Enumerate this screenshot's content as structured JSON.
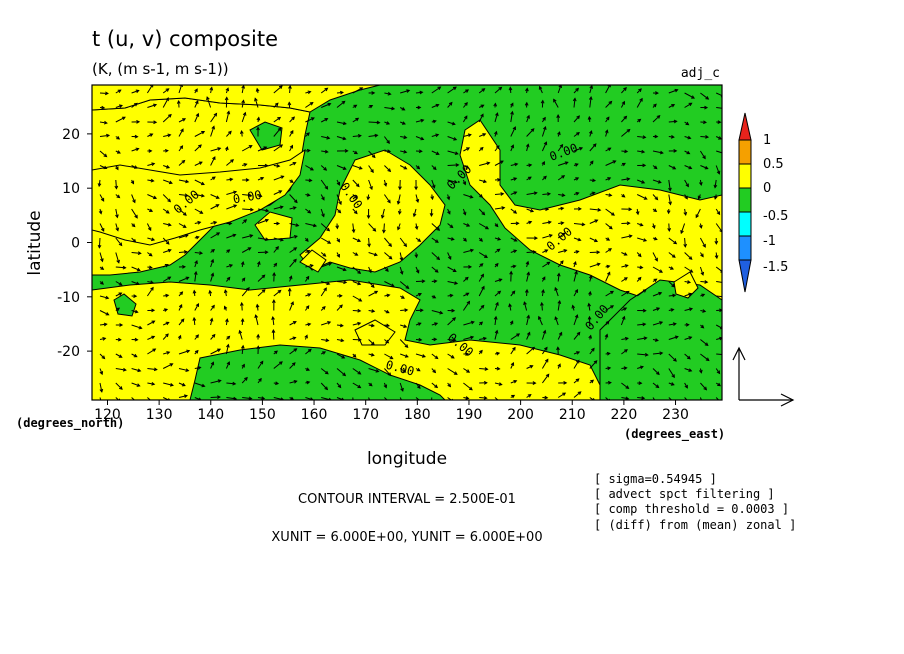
{
  "chart_data": {
    "type": "heatmap",
    "title": "t (u, v) composite",
    "subtitle": "(K, (m s-1, m s-1))",
    "tag": "adj_c",
    "xlabel": "longitude",
    "ylabel": "latitude",
    "x_unit_label": "(degrees_east)",
    "y_unit_label": "(degrees_north)",
    "xlim": [
      117,
      239
    ],
    "ylim": [
      -29,
      29
    ],
    "x_ticks": [
      120,
      130,
      140,
      150,
      160,
      170,
      180,
      190,
      200,
      210,
      220,
      230
    ],
    "y_ticks": [
      20,
      10,
      0,
      -10,
      -20
    ],
    "contour_label": "0.00",
    "colorbar": {
      "levels": [
        "1",
        "0.5",
        "0",
        "-0.5",
        "-1",
        "-1.5"
      ],
      "colors": [
        "#e8231c",
        "#f5a000",
        "#ffff00",
        "#22cc22",
        "#00ffff",
        "#1e90ff",
        "#1f5fe0"
      ]
    },
    "legend_vector": true,
    "notes": {
      "contour_interval": "CONTOUR INTERVAL = 2.500E-01",
      "units": "XUNIT = 6.000E+00, YUNIT = 6.000E+00",
      "info": [
        "[ sigma=0.54945 ]",
        "[ advect spct filtering ]",
        "[ comp threshold = 0.0003 ]",
        "[ (diff) from (mean) zonal ]"
      ]
    }
  }
}
